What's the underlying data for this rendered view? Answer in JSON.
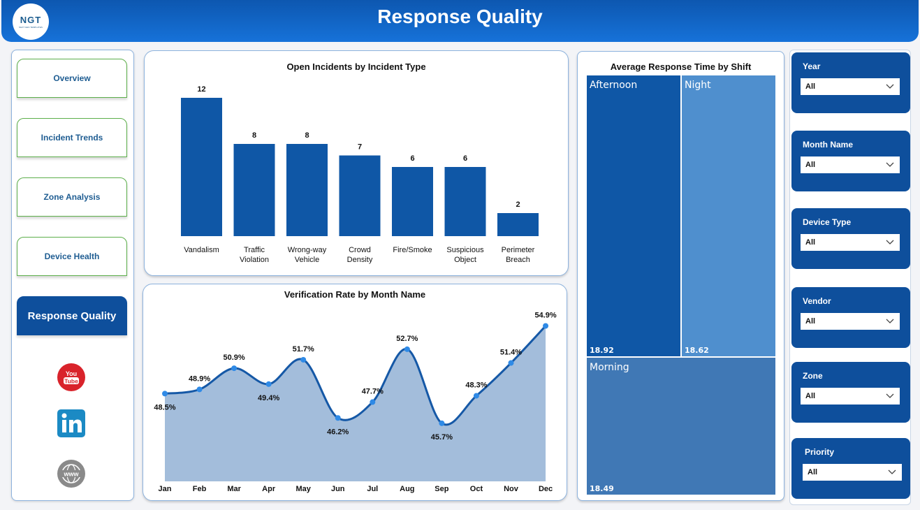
{
  "header": {
    "title": "Response Quality",
    "logo_text": "NGT",
    "logo_subtext": "NEXT GEN TEMPLATES"
  },
  "nav": {
    "items": [
      {
        "label": "Overview"
      },
      {
        "label": "Incident Trends"
      },
      {
        "label": "Zone Analysis"
      },
      {
        "label": "Device Health"
      },
      {
        "label": "Response Quality"
      }
    ],
    "social": [
      {
        "icon": "youtube-icon",
        "text": "You\nTube"
      },
      {
        "icon": "linkedin-icon",
        "text": "in"
      },
      {
        "icon": "www-icon",
        "text": "www"
      }
    ]
  },
  "colors": {
    "primary": "#0e4f9c",
    "bar": "#0f57a6",
    "night": "#4f8fce",
    "morning": "#4078b5",
    "area": "#a3bddb",
    "line": "#1558a6",
    "nav_border": "#5cae4a"
  },
  "charts": {
    "bar_title": "Open Incidents by Incident Type",
    "line_title": "Verification Rate by Month Name",
    "treemap_title": "Average Response Time by Shift"
  },
  "chart_data": [
    {
      "type": "bar",
      "title": "Open Incidents by Incident Type",
      "categories": [
        "Vandalism",
        "Traffic Violation",
        "Wrong-way Vehicle",
        "Crowd Density",
        "Fire/Smoke",
        "Suspicious Object",
        "Perimeter Breach"
      ],
      "category_lines": [
        [
          "Vandalism"
        ],
        [
          "Traffic",
          "Violation"
        ],
        [
          "Wrong-way",
          "Vehicle"
        ],
        [
          "Crowd",
          "Density"
        ],
        [
          "Fire/Smoke"
        ],
        [
          "Suspicious",
          "Object"
        ],
        [
          "Perimeter",
          "Breach"
        ]
      ],
      "values": [
        12,
        8,
        8,
        7,
        6,
        6,
        2
      ],
      "ylim": [
        0,
        12
      ]
    },
    {
      "type": "area",
      "title": "Verification Rate by Month Name",
      "categories": [
        "Jan",
        "Feb",
        "Mar",
        "Apr",
        "May",
        "Jun",
        "Jul",
        "Aug",
        "Sep",
        "Oct",
        "Nov",
        "Dec"
      ],
      "values": [
        48.5,
        48.9,
        50.9,
        49.4,
        51.7,
        46.2,
        47.7,
        52.7,
        45.7,
        48.3,
        51.4,
        54.9
      ],
      "labels": [
        "48.5%",
        "48.9%",
        "50.9%",
        "49.4%",
        "51.7%",
        "46.2%",
        "47.7%",
        "52.7%",
        "45.7%",
        "48.3%",
        "51.4%",
        "54.9%"
      ],
      "ylim": [
        41,
        55
      ]
    },
    {
      "type": "treemap",
      "title": "Average Response Time by Shift",
      "items": [
        {
          "name": "Afternoon",
          "value": 18.92,
          "label": "18.92"
        },
        {
          "name": "Night",
          "value": 18.62,
          "label": "18.62"
        },
        {
          "name": "Morning",
          "value": 18.49,
          "label": "18.49"
        }
      ]
    }
  ],
  "filters": [
    {
      "label": "Year",
      "value": "All"
    },
    {
      "label": "Month Name",
      "value": "All"
    },
    {
      "label": "Device Type",
      "value": "All"
    },
    {
      "label": "Vendor",
      "value": "All"
    },
    {
      "label": "Zone",
      "value": "All"
    },
    {
      "label": "Priority",
      "value": "All"
    }
  ]
}
